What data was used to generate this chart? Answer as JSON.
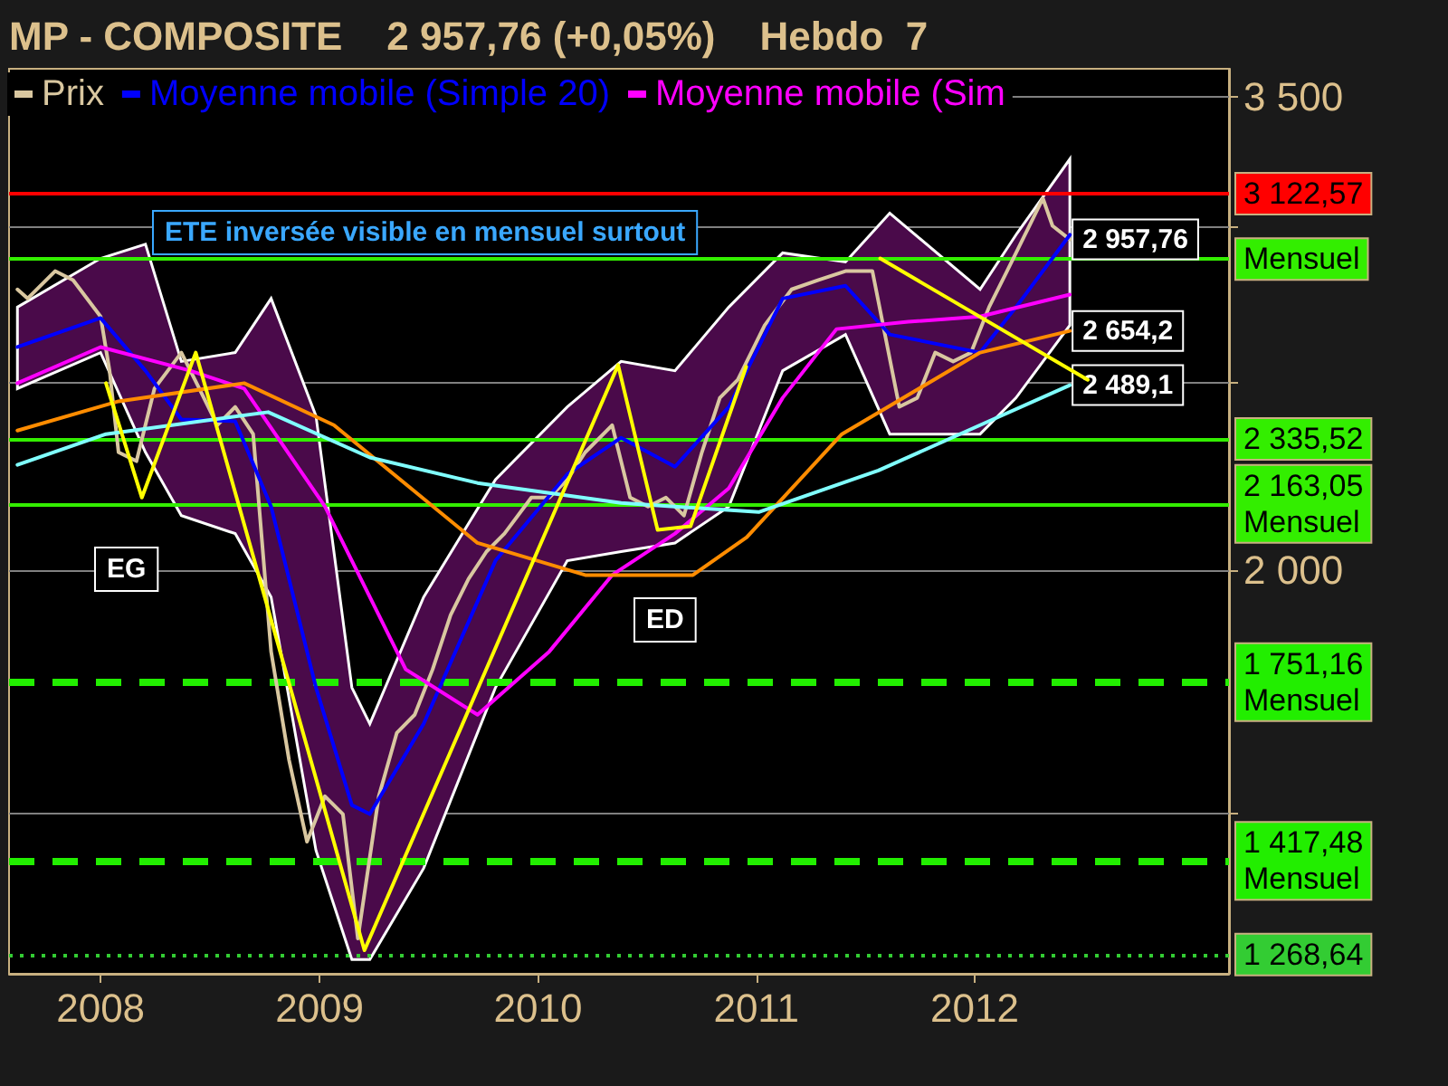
{
  "chart_data": {
    "type": "line",
    "title": "MP - COMPOSITE    2 957,76 (+0,05%)    Hebdo  7",
    "xlim": [
      "2007-08-01",
      "2013-03-01"
    ],
    "xticks": [
      "2008",
      "2009",
      "2010",
      "2011",
      "2012"
    ],
    "ylim": [
      1240,
      3620
    ],
    "log": true,
    "yticks": [
      {
        "value": 1500,
        "label": null
      },
      {
        "value": 2000,
        "label": "2 000"
      },
      {
        "value": 2500,
        "label": null
      },
      {
        "value": 3000,
        "label": null
      },
      {
        "value": 3500,
        "label": "3 500"
      }
    ],
    "grid": "y",
    "legend": "top left",
    "marker": "none",
    "series": [
      {
        "name": "Prix",
        "color": "#d9c7a0",
        "x": [
          "2007-08-15",
          "2007-09-01",
          "2007-10-17",
          "2007-11-16",
          "2008-01-01",
          "2008-01-16",
          "2008-01-31",
          "2008-03-01",
          "2008-03-31",
          "2008-05-15",
          "2008-06-14",
          "2008-07-14",
          "2008-08-13",
          "2008-09-12",
          "2008-10-12",
          "2008-11-11",
          "2008-12-11",
          "2009-01-10",
          "2009-02-09",
          "2009-03-06",
          "2009-04-10",
          "2009-05-10",
          "2009-06-09",
          "2009-07-09",
          "2009-08-08",
          "2009-09-07",
          "2009-10-07",
          "2009-11-06",
          "2009-12-21",
          "2010-01-20",
          "2010-02-19",
          "2010-03-21",
          "2010-05-05",
          "2010-06-04",
          "2010-07-04",
          "2010-08-03",
          "2010-09-02",
          "2010-10-02",
          "2010-11-01",
          "2010-12-01",
          "2011-01-15",
          "2011-03-01",
          "2011-04-15",
          "2011-05-30",
          "2011-07-14",
          "2011-08-28",
          "2011-09-27",
          "2011-10-27",
          "2011-11-26",
          "2011-12-26",
          "2012-01-25",
          "2012-02-24",
          "2012-03-25",
          "2012-04-24",
          "2012-05-10",
          "2012-06-08"
        ],
        "values": [
          2788,
          2758,
          2849,
          2819,
          2700,
          2532,
          2299,
          2275,
          2479,
          2587,
          2479,
          2374,
          2426,
          2349,
          1816,
          1597,
          1450,
          1530,
          1498,
          1293,
          1530,
          1649,
          1685,
          1778,
          1896,
          1979,
          2044,
          2088,
          2179,
          2179,
          2226,
          2299,
          2374,
          2179,
          2156,
          2179,
          2133,
          2299,
          2452,
          2505,
          2672,
          2788,
          2819,
          2849,
          2849,
          2426,
          2452,
          2587,
          2560,
          2587,
          2730,
          2849,
          2974,
          3105,
          3006,
          2957.76
        ]
      },
      {
        "name": "Moyenne mobile (Simple 20)",
        "color": "#0000ff",
        "x": [
          "2007-08-15",
          "2008-01-01",
          "2008-03-16",
          "2008-05-15",
          "2008-08-13",
          "2008-10-12",
          "2008-12-26",
          "2009-02-24",
          "2009-03-26",
          "2009-06-24",
          "2009-10-22",
          "2010-02-19",
          "2010-05-20",
          "2010-08-18",
          "2010-11-16",
          "2011-02-14",
          "2011-05-30",
          "2011-08-12",
          "2012-01-10",
          "2012-03-10",
          "2012-06-08"
        ],
        "values": [
          2604,
          2695,
          2532,
          2390,
          2385,
          2156,
          1740,
          1514,
          1498,
          1667,
          2022,
          2240,
          2339,
          2260,
          2426,
          2758,
          2800,
          2643,
          2587,
          2730,
          2974
        ],
        "upper": [
          2730,
          2892,
          2941,
          2560,
          2587,
          2758,
          2400,
          1740,
          1667,
          1937,
          2226,
          2426,
          2560,
          2532,
          2730,
          2911,
          2880,
          3051,
          2788,
          2974,
          3253
        ],
        "lower": [
          2479,
          2587,
          2299,
          2133,
          2088,
          1937,
          1435,
          1261,
          1261,
          1405,
          1740,
          2022,
          2044,
          2065,
          2156,
          2532,
          2643,
          2349,
          2349,
          2452,
          2672
        ]
      },
      {
        "name": "Moyenne mobile (Sim",
        "color": "#ff00ff",
        "x": [
          "2007-08-15",
          "2008-01-01",
          "2008-05-30",
          "2008-08-28",
          "2009-01-10",
          "2009-05-25",
          "2009-09-22",
          "2010-01-20",
          "2010-05-05",
          "2010-08-18",
          "2010-11-16",
          "2011-02-14",
          "2011-05-15",
          "2011-09-12",
          "2012-01-10",
          "2012-06-08"
        ],
        "values": [
          2495,
          2604,
          2532,
          2479,
          2156,
          1778,
          1685,
          1816,
          1988,
          2088,
          2203,
          2452,
          2660,
          2683,
          2700,
          2771
        ]
      },
      {
        "color": "#ff8c00",
        "x": [
          "2007-08-15",
          "2008-01-31",
          "2008-08-28",
          "2009-01-25",
          "2009-09-22",
          "2010-03-21",
          "2010-09-17",
          "2010-12-16",
          "2011-05-24",
          "2012-01-10",
          "2012-06-08"
        ],
        "values": [
          2359,
          2442,
          2495,
          2374,
          2065,
          1988,
          1988,
          2079,
          2349,
          2587,
          2654.2
        ]
      },
      {
        "color": "#80ffff",
        "x": [
          "2007-08-15",
          "2008-01-10",
          "2008-10-07",
          "2009-03-26",
          "2009-09-22",
          "2010-05-20",
          "2011-01-05",
          "2011-07-24",
          "2012-01-10",
          "2012-06-08"
        ],
        "values": [
          2265,
          2349,
          2411,
          2285,
          2217,
          2165,
          2142,
          2250,
          2374,
          2489.1
        ]
      },
      {
        "color": "#ffff00",
        "x": [
          "2008-01-10",
          "2008-03-10",
          "2008-06-08",
          "2009-03-17",
          "2010-05-15",
          "2010-07-20",
          "2010-09-13",
          "2010-12-15"
        ],
        "values": [
          2495,
          2179,
          2587,
          1275,
          2549,
          2097,
          2106,
          2544
        ]
      },
      {
        "color": "#ffff00",
        "x": [
          "2011-07-27",
          "2012-07-08"
        ],
        "values": [
          2892,
          2505
        ]
      }
    ],
    "ref_lines": [
      {
        "axis": "y",
        "value": 3122.57,
        "label": "3 122,57",
        "color": "#ff0000",
        "line_style": "solid"
      },
      {
        "axis": "y",
        "value": 2890,
        "label": "Mensuel",
        "color": "#33ee00",
        "line_style": "solid"
      },
      {
        "axis": "y",
        "value": 2335.52,
        "label": "2 335,52",
        "color": "#33ee00",
        "line_style": "solid"
      },
      {
        "axis": "y",
        "value": 2163.05,
        "label": "2 163,05\nMensuel",
        "color": "#33ee00",
        "line_style": "solid"
      },
      {
        "axis": "y",
        "value": 1751.16,
        "label": "1 751,16\nMensuel",
        "color": "#22ee00",
        "line_style": "dashed"
      },
      {
        "axis": "y",
        "value": 1417.48,
        "label": "1 417,48\nMensuel",
        "color": "#22ee00",
        "line_style": "dashed"
      },
      {
        "axis": "y",
        "value": 1268.64,
        "label": "1 268,64",
        "color": "#33cc33",
        "line_style": "dotted"
      }
    ],
    "annotations": [
      "ETE inversée visible en mensuel surtout",
      "EG",
      "ED",
      {
        "text": "2 957,76",
        "x": "2012-06-08",
        "y": 2957.76
      },
      {
        "text": "2 654,2",
        "x": "2012-06-08",
        "y": 2654.2
      },
      {
        "text": "2 489,1",
        "x": "2012-06-08",
        "y": 2489.1
      }
    ]
  }
}
